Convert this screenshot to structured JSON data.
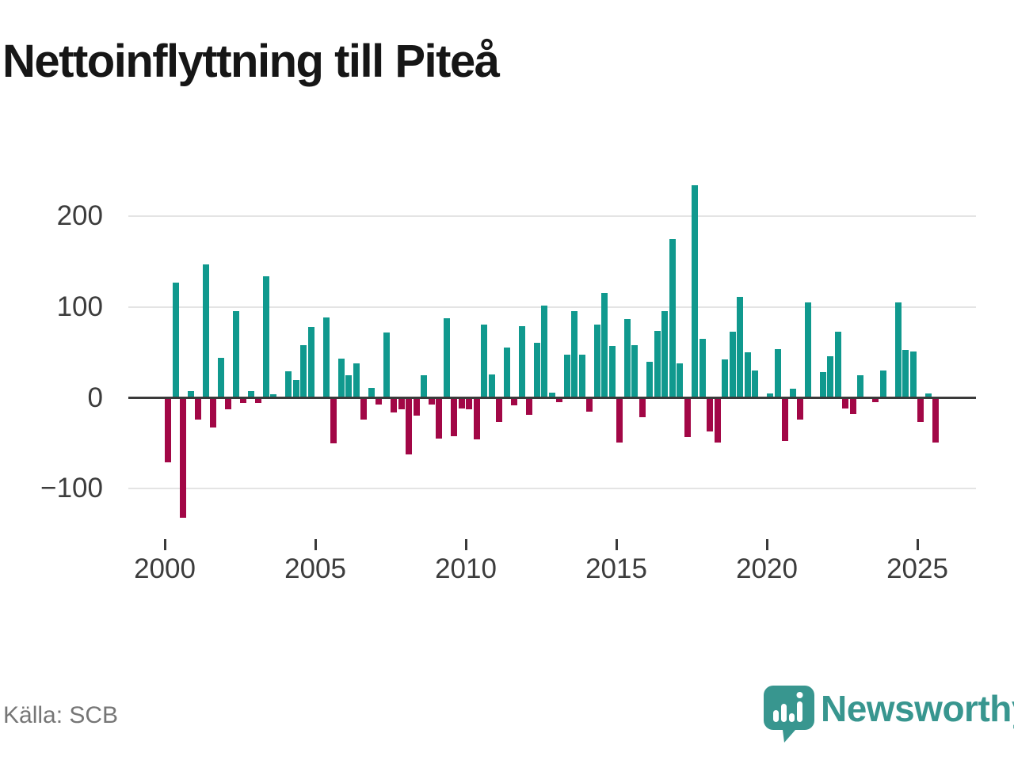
{
  "title": "Nettoinflyttning till Piteå",
  "source_note": "Källa: SCB",
  "logo": {
    "text": "Newsworthy",
    "icon": "newsworthy-speech-bubble-bar-chart-icon",
    "color": "#38968f"
  },
  "chart_data": {
    "type": "bar",
    "title": "Nettoinflyttning till Piteå",
    "frequency": "quarterly",
    "start_period": "2000Q1",
    "end_period": "2025Q3",
    "xlabel": "",
    "ylabel": "",
    "legend": "none",
    "grid": true,
    "x_axis": {
      "tick_years": [
        2000,
        2005,
        2010,
        2015,
        2020,
        2025
      ],
      "tick_labels": [
        "2000",
        "2005",
        "2010",
        "2015",
        "2020",
        "2025"
      ]
    },
    "y_axis": {
      "tick_values": [
        200,
        100,
        0,
        -100
      ],
      "tick_labels": [
        "200",
        "100",
        "0",
        "−100"
      ],
      "ylim": [
        -140,
        240
      ]
    },
    "colors": {
      "positive": "#10998e",
      "negative": "#a20746"
    },
    "values": [
      -71,
      127,
      -132,
      7,
      -24,
      147,
      -33,
      44,
      -13,
      96,
      -6,
      7,
      -6,
      134,
      4,
      0,
      29,
      20,
      58,
      78,
      0,
      89,
      -50,
      43,
      25,
      38,
      -24,
      11,
      -7,
      72,
      -16,
      -13,
      -62,
      -20,
      25,
      -7,
      -45,
      88,
      -42,
      -12,
      -13,
      -46,
      81,
      26,
      -27,
      55,
      -8,
      79,
      -19,
      61,
      102,
      6,
      -5,
      48,
      96,
      48,
      -15,
      81,
      116,
      57,
      -49,
      87,
      58,
      -21,
      40,
      74,
      96,
      175,
      38,
      -43,
      234,
      65,
      -37,
      -49,
      42,
      73,
      111,
      50,
      30,
      0,
      5,
      54,
      -48,
      10,
      -24,
      105,
      0,
      28,
      46,
      73,
      -12,
      -18,
      25,
      0,
      -5,
      30,
      0,
      105,
      53,
      51,
      -27,
      5,
      -49
    ]
  }
}
